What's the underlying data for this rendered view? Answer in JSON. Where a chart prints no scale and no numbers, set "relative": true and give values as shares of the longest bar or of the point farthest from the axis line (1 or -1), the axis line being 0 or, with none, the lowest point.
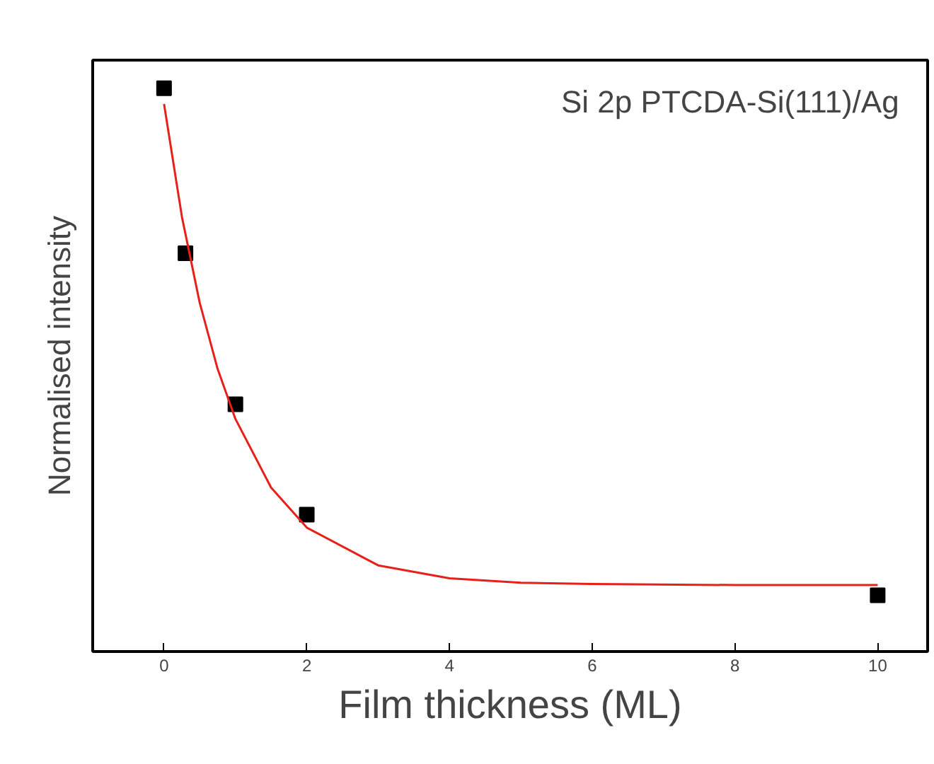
{
  "chart_data": {
    "type": "scatter",
    "xlabel": "Film thickness (ML)",
    "ylabel": "Normalised intensity",
    "annotations": [
      "Si 2p PTCDA-Si(111)/Ag"
    ],
    "relative": true,
    "xlim": [
      -1,
      10.7
    ],
    "xticks": [
      0,
      2,
      4,
      6,
      8,
      10
    ],
    "tick_labels": "x",
    "grid": false,
    "marker": "square",
    "x": [
      0,
      0.3,
      1,
      2,
      10
    ],
    "series": [
      {
        "color": "#000000",
        "values": [
          1,
          0.707,
          0.439,
          0.243,
          0.1
        ]
      },
      {
        "type": "line",
        "color": "#e8201a",
        "line_style": "solid",
        "marker": "none",
        "x": [
          0,
          0.25,
          0.5,
          0.75,
          1,
          1.5,
          2,
          3,
          4,
          5,
          6,
          8,
          10
        ],
        "values": [
          0.972,
          0.772,
          0.619,
          0.502,
          0.413,
          0.291,
          0.22,
          0.153,
          0.13,
          0.122,
          0.12,
          0.118,
          0.118
        ]
      }
    ]
  }
}
